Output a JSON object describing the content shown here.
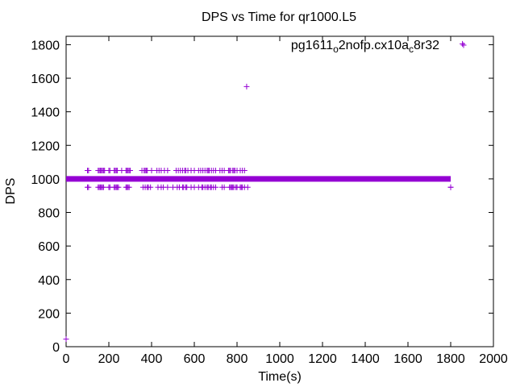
{
  "chart_data": {
    "type": "scatter",
    "title": "DPS vs Time for qr1000.L5",
    "xlabel": "Time(s)",
    "ylabel": "DPS",
    "xlim": [
      0,
      2000
    ],
    "ylim": [
      0,
      1850
    ],
    "xticks": [
      0,
      200,
      400,
      600,
      800,
      1000,
      1200,
      1400,
      1600,
      1800,
      2000
    ],
    "yticks": [
      0,
      200,
      400,
      600,
      800,
      1000,
      1200,
      1400,
      1600,
      1800
    ],
    "grid": false,
    "legend_position": "top-right",
    "series": [
      {
        "name": "pg1611_o2nofp.cx10a_c8r32",
        "legend_parts": [
          {
            "text": "pg1611",
            "sub": false
          },
          {
            "text": "o",
            "sub": true
          },
          {
            "text": "2nofp.cx10a",
            "sub": false
          },
          {
            "text": "c",
            "sub": true
          },
          {
            "text": "8r32",
            "sub": false
          }
        ],
        "color": "#9400d3",
        "marker": "plus",
        "dense_band": {
          "x_start": 0,
          "x_end": 1800,
          "y": 1000
        },
        "points_upper": {
          "y": 1050,
          "x": [
            100,
            105,
            150,
            155,
            160,
            165,
            170,
            175,
            180,
            200,
            205,
            225,
            230,
            235,
            240,
            260,
            280,
            285,
            290,
            295,
            300,
            355,
            365,
            370,
            375,
            380,
            400,
            425,
            435,
            445,
            460,
            475,
            515,
            525,
            535,
            545,
            555,
            560,
            570,
            585,
            600,
            620,
            630,
            640,
            650,
            660,
            665,
            670,
            680,
            690,
            700,
            720,
            730,
            740,
            760,
            765,
            770,
            780,
            785,
            790,
            800,
            815,
            825,
            835
          ]
        },
        "points_lower": {
          "y": 950,
          "x": [
            100,
            105,
            150,
            155,
            160,
            165,
            170,
            175,
            200,
            205,
            225,
            230,
            235,
            240,
            245,
            280,
            285,
            290,
            295,
            360,
            370,
            380,
            385,
            395,
            430,
            445,
            455,
            475,
            500,
            520,
            530,
            545,
            550,
            560,
            565,
            585,
            600,
            620,
            635,
            640,
            650,
            660,
            665,
            675,
            680,
            690,
            700,
            730,
            740,
            765,
            770,
            775,
            780,
            785,
            795,
            800,
            815,
            820,
            825,
            835,
            850,
            1800
          ]
        },
        "points_other": [
          {
            "x": 0,
            "y": 45
          },
          {
            "x": 845,
            "y": 1550
          },
          {
            "x": 1800,
            "y": 950
          },
          {
            "x": 1855,
            "y": 1805
          }
        ]
      }
    ]
  }
}
